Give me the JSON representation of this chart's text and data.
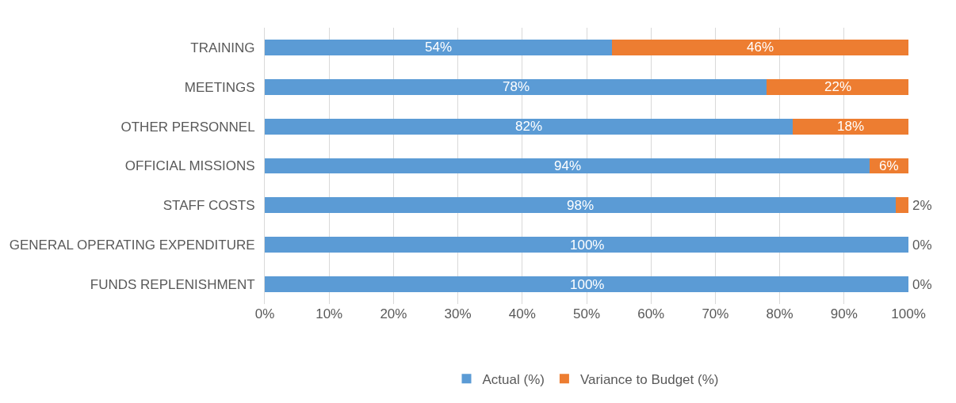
{
  "chart_data": {
    "type": "bar",
    "orientation": "horizontal",
    "stacked": true,
    "categories": [
      "TRAINING",
      "MEETINGS",
      "OTHER PERSONNEL",
      "OFFICIAL MISSIONS",
      "STAFF COSTS",
      "GENERAL OPERATING EXPENDITURE",
      "FUNDS REPLENISHMENT"
    ],
    "series": [
      {
        "name": "Actual (%)",
        "color": "#5b9bd5",
        "values": [
          54,
          78,
          82,
          94,
          98,
          100,
          100
        ],
        "value_labels": [
          "54%",
          "78%",
          "82%",
          "94%",
          "98%",
          "100%",
          "100%"
        ]
      },
      {
        "name": "Variance to Budget (%)",
        "color": "#ed7d31",
        "values": [
          46,
          22,
          18,
          6,
          2,
          0,
          0
        ],
        "value_labels": [
          "46%",
          "22%",
          "18%",
          "6%",
          "2%",
          "0%",
          "0%"
        ]
      }
    ],
    "xlim": [
      0,
      100
    ],
    "xticks": [
      {
        "value": 0,
        "label": "0%"
      },
      {
        "value": 10,
        "label": "10%"
      },
      {
        "value": 20,
        "label": "20%"
      },
      {
        "value": 30,
        "label": "30%"
      },
      {
        "value": 40,
        "label": "40%"
      },
      {
        "value": 50,
        "label": "50%"
      },
      {
        "value": 60,
        "label": "60%"
      },
      {
        "value": 70,
        "label": "70%"
      },
      {
        "value": 80,
        "label": "80%"
      },
      {
        "value": 90,
        "label": "90%"
      },
      {
        "value": 100,
        "label": "100%"
      }
    ],
    "grid": "x",
    "legend": "bottom"
  }
}
